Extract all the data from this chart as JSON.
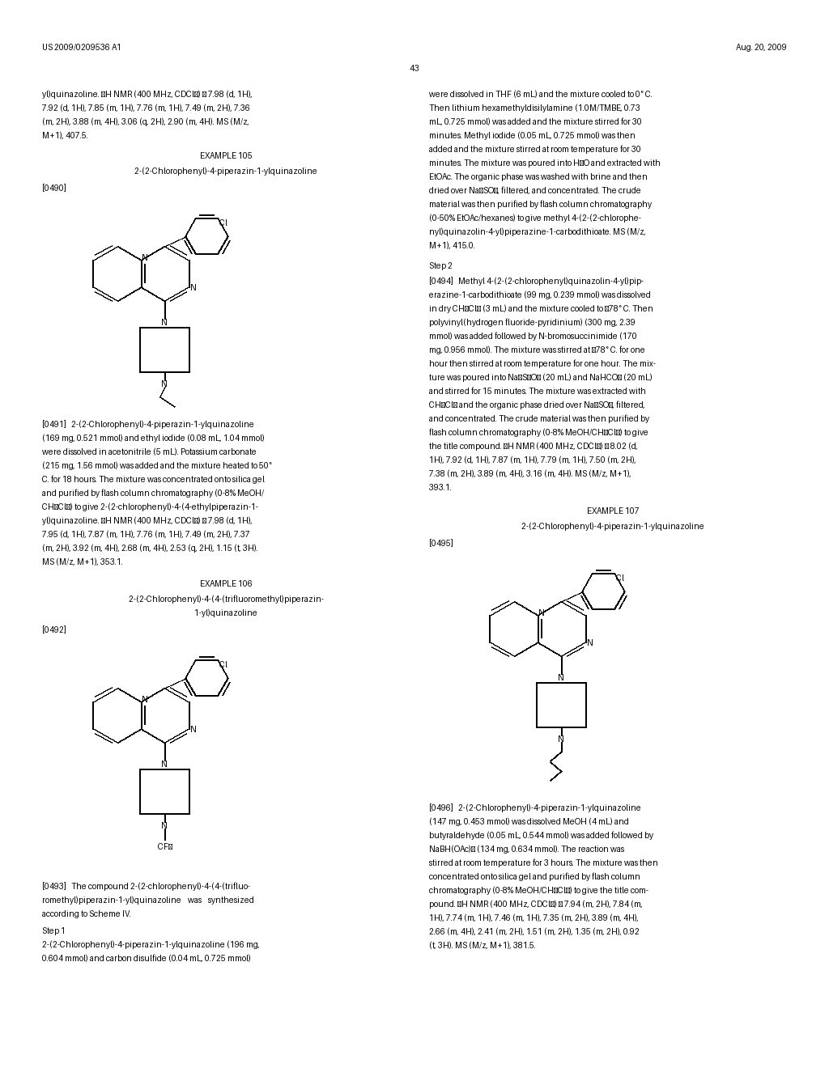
{
  "bg_color": "#ffffff",
  "header_left": "US 2009/0209536 A1",
  "header_right": "Aug. 20, 2009",
  "page_number": "43",
  "left_col_text_top": "yl)quinazoline. ¹H NMR (400 MHz, CDCl₃) δ 7.98 (d, 1H),\n7.92 (d, 1H), 7.85 (m, 1H), 7.76 (m, 1H), 7.49 (m, 2H), 7.36\n(m, 2H), 3.88 (m, 4H), 3.06 (q, 2H), 2.90 (m, 4H). MS (M/z,\nM+1), 407.5.",
  "example105_title": "EXAMPLE 105",
  "example105_subtitle": "2-(2-Chlorophenyl)-4-piperazin-1-ylquinazoline",
  "example105_ref": "[0490]",
  "example105_body": "[0491]   2-(2-Chlorophenyl)-4-piperazin-1-ylquinazoline\n(169 mg, 0.521 mmol) and ethyl iodide (0.08 mL, 1.04 mmol)\nwere dissolved in acetonitrile (5 mL). Potassium carbonate\n(215 mg, 1.56 mmol) was added and the mixture heated to 50°\nC. for 18 hours. The mixture was concentrated onto silica gel\nand purified by flash column chromatography (0-8% MeOH/\nCH₂Cl₂) to give 2-(2-chlorophenyl)-4-(4-ethylpiperazin-1-\nyl)quinazoline. ¹H NMR (400 MHz, CDCl₃) δ 7.98 (d, 1H),\n7.95 (d, 1H), 7.87 (m, 1H), 7.76 (m, 1H), 7.49 (m, 2H), 7.37\n(m, 2H), 3.92 (m, 4H), 2.68 (m, 4H), 2.53 (q, 2H), 1.15 (t, 3H).\nMS (M/z, M+1), 353.1.",
  "example106_title": "EXAMPLE 106",
  "example106_subtitle_l1": "2-(2-Chlorophenyl)-4-(4-(trifluoromethyl)piperazin-",
  "example106_subtitle_l2": "1-yl)quinazoline",
  "example106_ref": "[0492]",
  "example106_body_l1": "[0493]   The compound 2-(2-chlorophenyl)-4-(4-(trifluo-",
  "example106_body_l2": "romethyl)piperazin-1-yl)quinazoline    was    synthesized",
  "example106_body_l3": "according to Scheme IV.",
  "example106_body_l4": "Step 1",
  "example106_body_l5": "2-(2-Chlorophenyl)-4-piperazin-1-ylquinazoline (196 mg,",
  "example106_body_l6": "0.604 mmol) and carbon disulfide (0.04 mL, 0.725 mmol)",
  "right_col_top": "were dissolved in THF (6 mL) and the mixture cooled to 0° C.\nThen lithium hexamethyldisilylamine (1.0M/TMBE, 0.73\nmL, 0.725 mmol) was added and the mixture stirred for 30\nminutes. Methyl iodide (0.05 mL, 0.725 mmol) was then\nadded and the mixture stirred at room temperature for 30\nminutes. The mixture was poured into H₂O and extracted with\nEtOAc. The organic phase was washed with brine and then\ndried over Na₂SO₄, filtered, and concentrated. The crude\nmaterial was then purified by flash column chromatography\n(0-50% EtOAc/hexanes) to give methyl 4-(2-(2-chlorophe-\nnyl)quinazolin-4-yl)piperazine-1-carbodithioate. MS (M/z,\nM+1), 415.0.",
  "step2_head": "Step 2",
  "step2_body": "[0494]   Methyl 4-(2-(2-chlorophenyl)quinazolin-4-yl)pip-\nerazine-1-carbodithioate (99 mg, 0.239 mmol) was dissolved\nin dry CH₂Cl₂ (3 mL) and the mixture cooled to −78° C. Then\npolyvinyl(hydrogen fluoride-pyridinium) (300 mg, 2.39\nmmol) was added followed by N-bromosuccinimide (170\nmg, 0.956 mmol). The mixture was stirred at −78° C. for one\nhour then stirred at room temperature for one hour. The mix-\nture was poured into Na₂S₂O₃ (20 mL) and NaHCO₃ (20 mL)\nand stirred for 15 minutes. The mixture was extracted with\nCH₂Cl₂ and the organic phase dried over Na₂SO₄, filtered,\nand concentrated. The crude material was then purified by\nflash column chromatography (0-8% MeOH/CH₂Cl₂) to give\nthe title compound. ¹H NMR (400 MHz, CDCl₃) δ 8.02 (d,\n1H), 7.92 (d, 1H), 7.87 (m, 1H), 7.79 (m, 1H), 7.50 (m, 2H),\n7.38 (m, 2H), 3.89 (m, 4H), 3.16 (m, 4H). MS (M/z, M+1),\n393.1.",
  "example107_title": "EXAMPLE 107",
  "example107_subtitle": "2-(2-Chlorophenyl)-4-piperazin-1-ylquinazoline",
  "example107_ref": "[0495]",
  "example107_body": "[0496]   2-(2-Chlorophenyl)-4-piperazin-1-ylquinazoline\n(147 mg, 0.453 mmol) was dissolved MeOH (4 mL) and\nbutyraldehyde (0.05 mL, 0.544 mmol) was added followed by\nNaBH(OAc)₃ (134 mg, 0.634 mmol). The reaction was\nstirred at room temperature for 3 hours. The mixture was then\nconcentrated onto silica gel and purified by flash column\nchromatography (0-8% MeOH/CH₂Cl₂) to give the title com-\npound. ¹H NMR (400 MHz, CDCl₃) δ 7.94 (m, 2H), 7.84 (m,\n1H), 7.74 (m, 1H), 7.46 (m, 1H), 7.35 (m, 2H), 3.89 (m, 4H),\n2.66 (m, 4H), 2.41 (m, 2H), 1.51 (m, 2H), 1.35 (m, 2H), 0.92\n(t, 3H). MS (M/z, M+1), 381.5."
}
